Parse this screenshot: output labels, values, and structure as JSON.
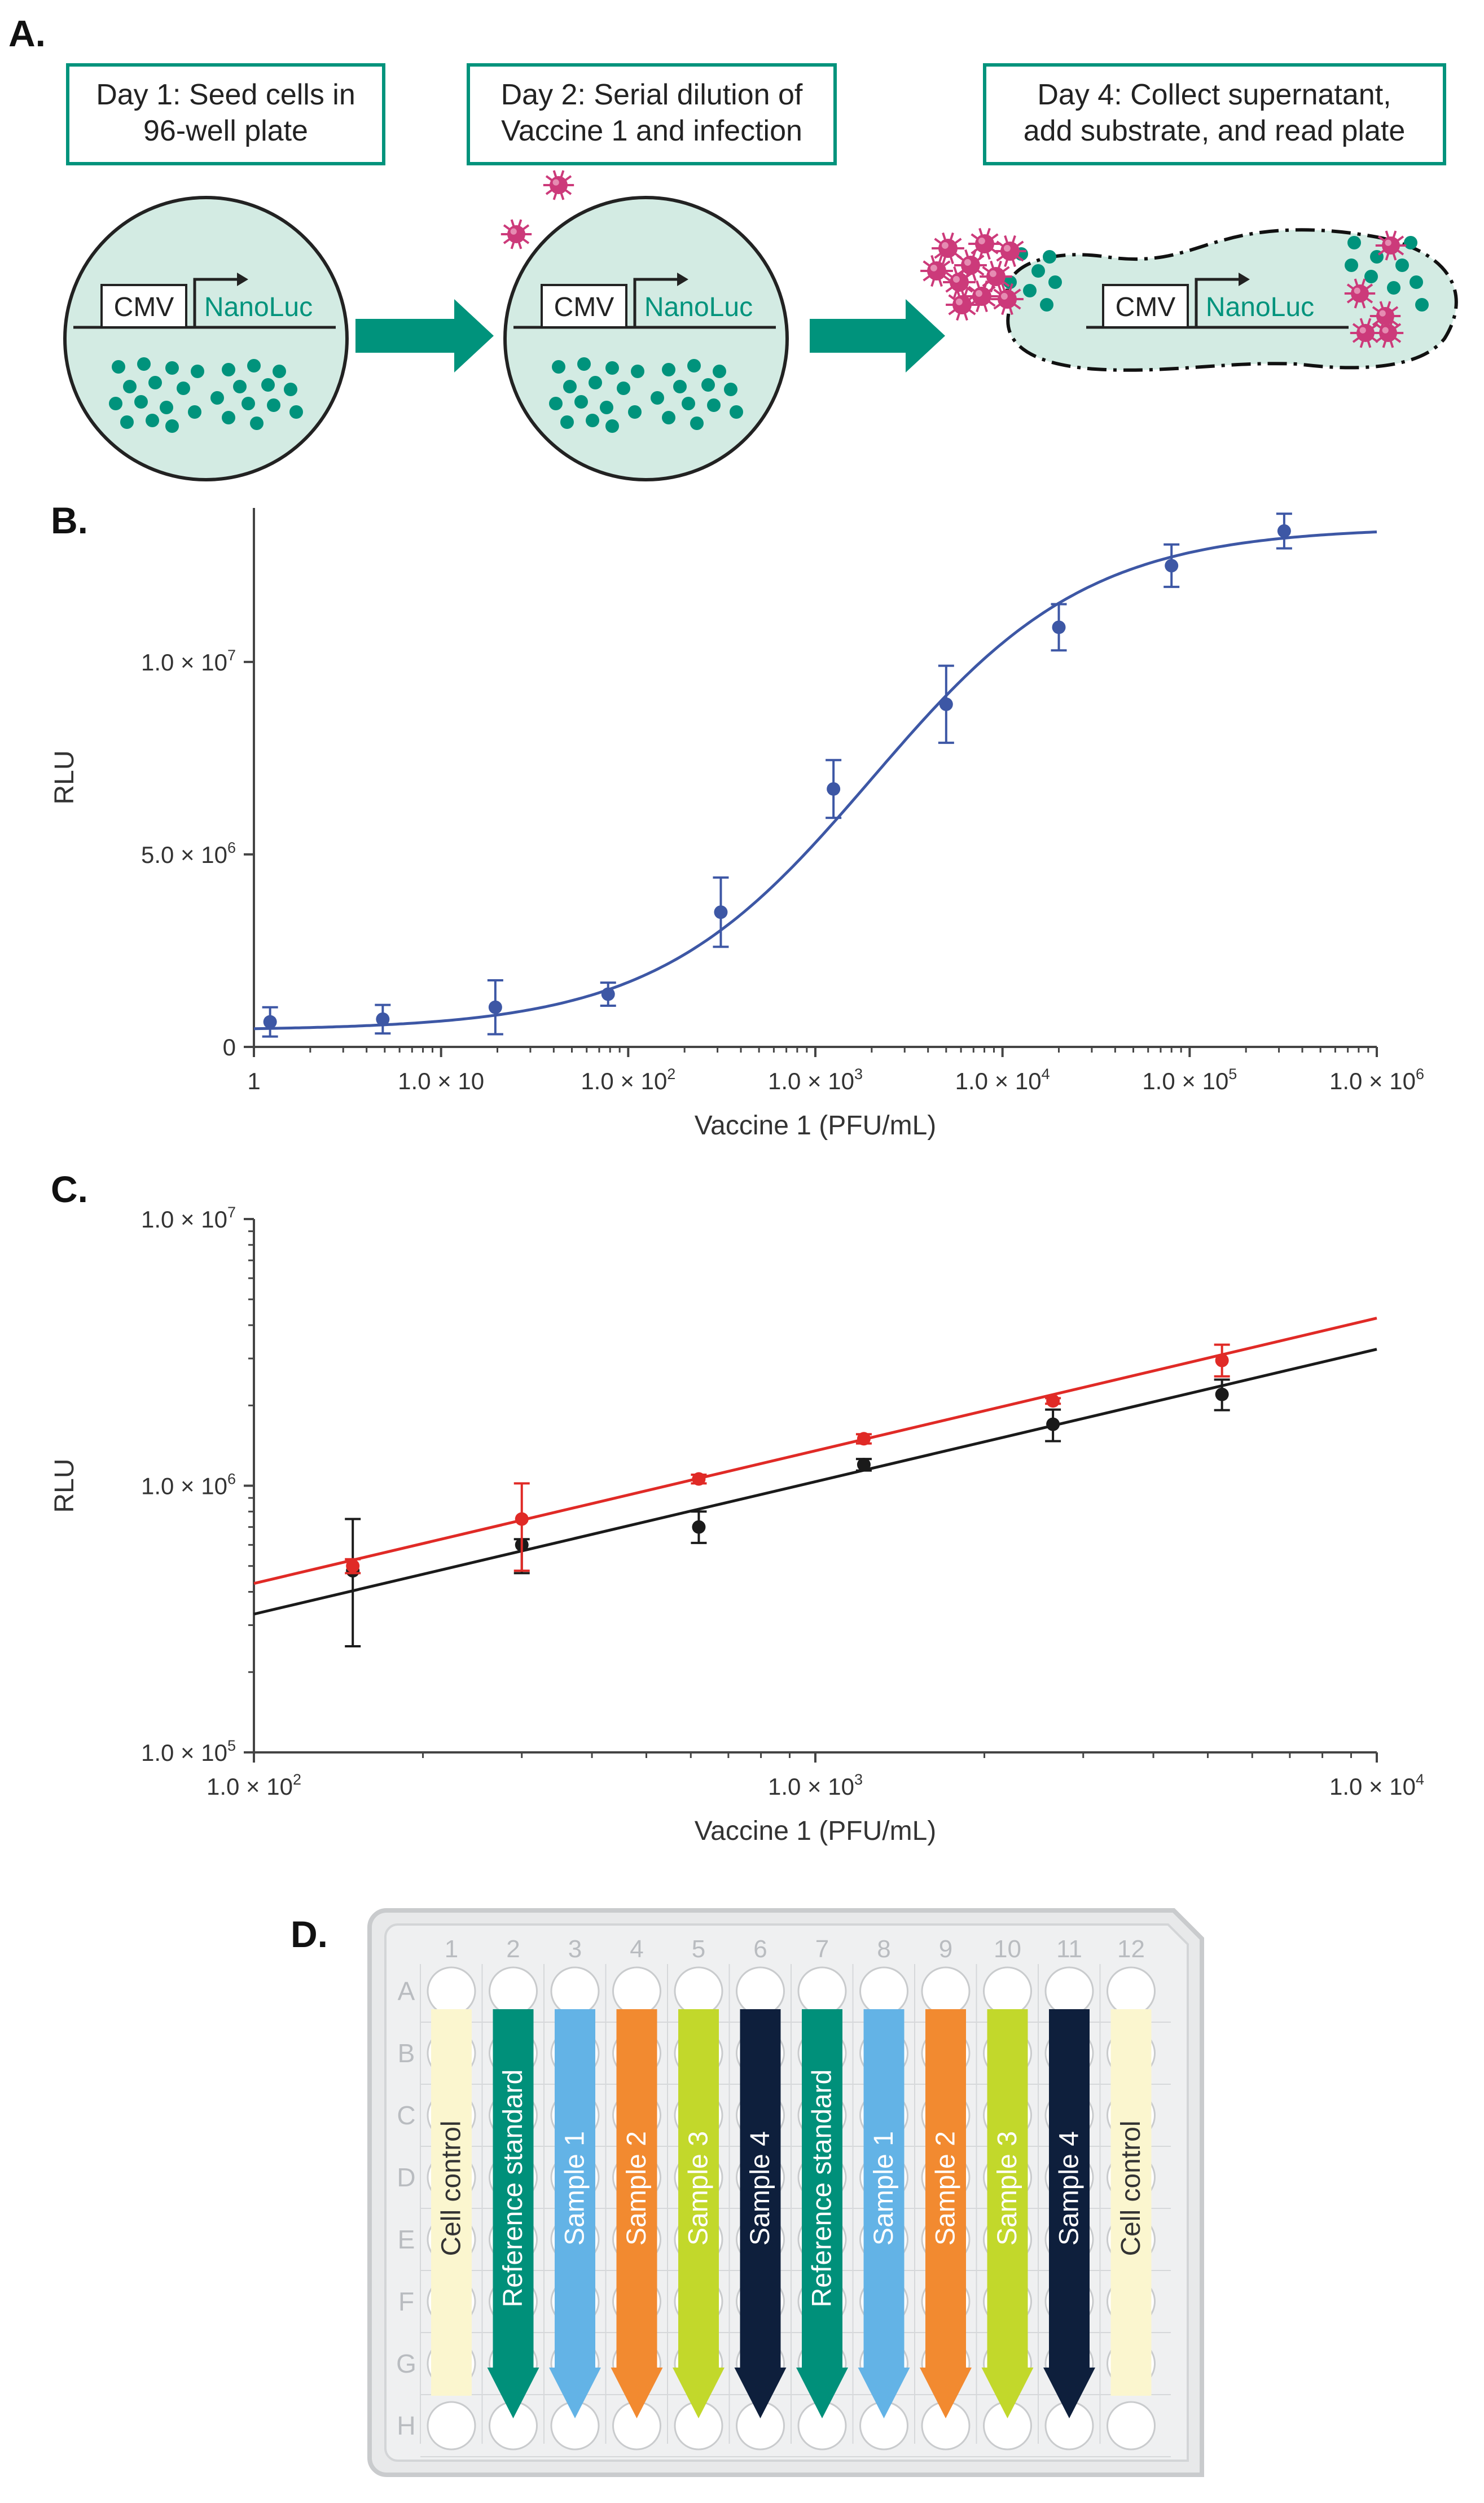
{
  "panel_a": {
    "letter": "A.",
    "steps": [
      "Day 1: Seed cells in\n96-well plate",
      "Day 2: Serial dilution of\nVaccine 1 and infection",
      "Day 4: Collect supernatant,\nadd substrate, and read plate"
    ],
    "promoter_label": "CMV",
    "gene_label": "NanoLuc",
    "colors": {
      "teal": "#00937c",
      "cell_fill": "#d3ebe3",
      "virus": "#cc3a7a",
      "arrow": "#00937c"
    }
  },
  "panel_d": {
    "letter": "D.",
    "columns": [
      "1",
      "2",
      "3",
      "4",
      "5",
      "6",
      "7",
      "8",
      "9",
      "10",
      "11",
      "12"
    ],
    "rows": [
      "A",
      "B",
      "C",
      "D",
      "E",
      "F",
      "G",
      "H"
    ],
    "strips": [
      {
        "label": "Cell control",
        "color": "#fbf6cf",
        "text_color": "#333333",
        "shape": "bar"
      },
      {
        "label": "Reference standard",
        "color": "#00907a",
        "text_color": "#ffffff",
        "shape": "arrow"
      },
      {
        "label": "Sample 1",
        "color": "#63b3e6",
        "text_color": "#ffffff",
        "shape": "arrow"
      },
      {
        "label": "Sample 2",
        "color": "#f28a30",
        "text_color": "#ffffff",
        "shape": "arrow"
      },
      {
        "label": "Sample 3",
        "color": "#c2d82b",
        "text_color": "#ffffff",
        "shape": "arrow"
      },
      {
        "label": "Sample 4",
        "color": "#0e1f3c",
        "text_color": "#ffffff",
        "shape": "arrow"
      },
      {
        "label": "Reference standard",
        "color": "#00907a",
        "text_color": "#ffffff",
        "shape": "arrow"
      },
      {
        "label": "Sample 1",
        "color": "#63b3e6",
        "text_color": "#ffffff",
        "shape": "arrow"
      },
      {
        "label": "Sample 2",
        "color": "#f28a30",
        "text_color": "#ffffff",
        "shape": "arrow"
      },
      {
        "label": "Sample 3",
        "color": "#c2d82b",
        "text_color": "#ffffff",
        "shape": "arrow"
      },
      {
        "label": "Sample 4",
        "color": "#0e1f3c",
        "text_color": "#ffffff",
        "shape": "arrow"
      },
      {
        "label": "Cell control",
        "color": "#fbf6cf",
        "text_color": "#333333",
        "shape": "bar"
      }
    ]
  },
  "chart_data": [
    {
      "panel": "B.",
      "type": "scatter",
      "xscale": "log",
      "yscale": "linear",
      "xlabel": "Vaccine 1 (PFU/mL)",
      "ylabel": "RLU",
      "xlim": [
        1,
        1000000
      ],
      "ylim": [
        0,
        14000000
      ],
      "xticks": [
        {
          "value": 1,
          "base": "1",
          "exp": ""
        },
        {
          "value": 10,
          "base": "1.0 × 10",
          "exp": ""
        },
        {
          "value": 100,
          "base": "1.0 × 10",
          "exp": "2"
        },
        {
          "value": 1000,
          "base": "1.0 × 10",
          "exp": "3"
        },
        {
          "value": 10000,
          "base": "1.0 × 10",
          "exp": "4"
        },
        {
          "value": 100000,
          "base": "1.0 × 10",
          "exp": "5"
        },
        {
          "value": 1000000,
          "base": "1.0 × 10",
          "exp": "6"
        }
      ],
      "yticks": [
        {
          "value": 0,
          "base": "0",
          "exp": ""
        },
        {
          "value": 5000000,
          "base": "5.0 × 10",
          "exp": "6"
        },
        {
          "value": 10000000,
          "base": "1.0 × 10",
          "exp": "7"
        }
      ],
      "series": [
        {
          "name": "Vaccine 1",
          "color": "#3d57a5",
          "x": [
            1.22,
            4.88,
            19.5,
            78.1,
            312.5,
            1250,
            5000,
            20000,
            80000,
            320000
          ],
          "y": [
            650000,
            720000,
            1030000,
            1370000,
            3500000,
            6700000,
            8900000,
            10900000,
            12500000,
            13400000
          ],
          "err": [
            380000,
            370000,
            700000,
            300000,
            900000,
            750000,
            1000000,
            600000,
            550000,
            450000
          ],
          "fit": {
            "model": "4PL",
            "bottom": 430000,
            "top": 13500000,
            "ec50": 2000,
            "hill": 0.75
          }
        }
      ]
    },
    {
      "panel": "C.",
      "type": "scatter",
      "xscale": "log",
      "yscale": "log",
      "xlabel": "Vaccine 1 (PFU/mL)",
      "ylabel": "RLU",
      "xlim": [
        100,
        10000
      ],
      "ylim": [
        100000,
        10000000
      ],
      "xticks": [
        {
          "value": 100,
          "base": "1.0 × 10",
          "exp": "2"
        },
        {
          "value": 1000,
          "base": "1.0 × 10",
          "exp": "3"
        },
        {
          "value": 10000,
          "base": "1.0 × 10",
          "exp": "4"
        }
      ],
      "yticks": [
        {
          "value": 100000,
          "base": "1.0 × 10",
          "exp": "5"
        },
        {
          "value": 1000000,
          "base": "1.0 × 10",
          "exp": "6"
        },
        {
          "value": 10000000,
          "base": "1.0 × 10",
          "exp": "7"
        }
      ],
      "series": [
        {
          "name": "Black series",
          "color": "#1a1a1a",
          "x": [
            150,
            300,
            620,
            1220,
            2650,
            5300
          ],
          "y": [
            480000,
            600000,
            700000,
            1200000,
            1700000,
            2200000
          ],
          "err_low": [
            250000,
            470000,
            610000,
            1140000,
            1470000,
            1920000
          ],
          "err_high": [
            750000,
            630000,
            800000,
            1260000,
            1930000,
            2500000
          ],
          "fit": {
            "x": [
              100,
              10000
            ],
            "y": [
              330000,
              3250000
            ]
          }
        },
        {
          "name": "Red series",
          "color": "#e02a26",
          "x": [
            150,
            300,
            620,
            1220,
            2650,
            5300
          ],
          "y": [
            500000,
            750000,
            1060000,
            1500000,
            2080000,
            2950000
          ],
          "err_low": [
            470000,
            480000,
            1020000,
            1440000,
            2030000,
            2570000
          ],
          "err_high": [
            530000,
            1020000,
            1100000,
            1560000,
            2130000,
            3380000
          ],
          "fit": {
            "x": [
              100,
              10000
            ],
            "y": [
              430000,
              4250000
            ]
          }
        }
      ]
    }
  ]
}
